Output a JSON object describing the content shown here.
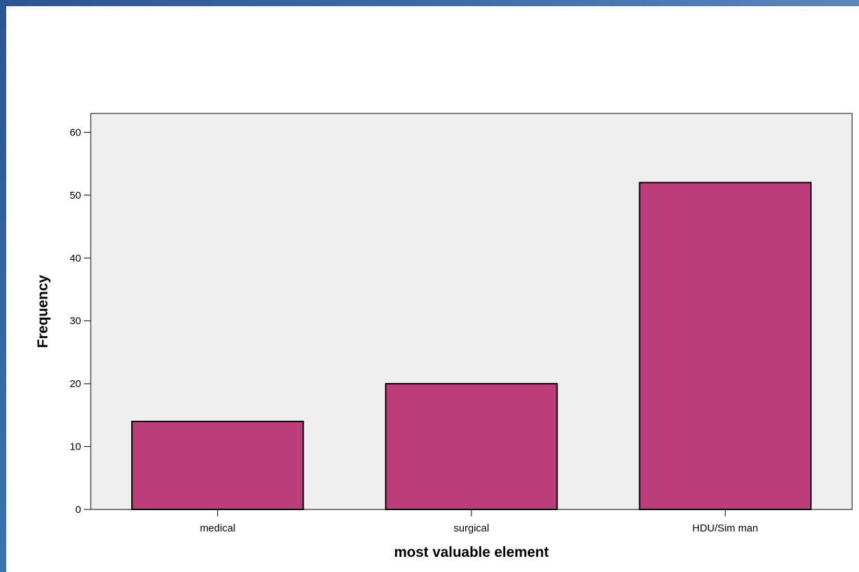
{
  "chart_data": {
    "type": "bar",
    "categories": [
      "medical",
      "surgical",
      "HDU/Sim man"
    ],
    "values": [
      14,
      20,
      52
    ],
    "title": "",
    "xlabel": "most valuable element",
    "ylabel": "Frequency",
    "ylim": [
      0,
      63
    ],
    "yticks": [
      0,
      10,
      20,
      30,
      40,
      50,
      60
    ],
    "grid": false,
    "legend": "none",
    "colors": {
      "bar_fill": "#bb3e7b",
      "bar_stroke": "#000000",
      "plot_background": "#efefef"
    }
  }
}
